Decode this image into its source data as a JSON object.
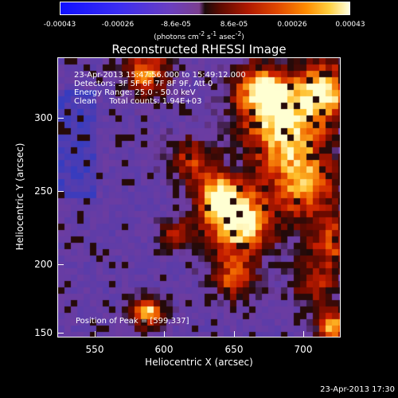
{
  "colorbar": {
    "ticks": [
      "-0.00043",
      "-0.00026",
      "-8.6e-05",
      "8.6e-05",
      "0.00026",
      "0.00043"
    ],
    "units_html": "(photons cm<sup>-2</sup> s<sup>-1</sup> asec<sup>-2</sup>)",
    "colors": [
      "#1010ff",
      "#6b3fbf",
      "#1b0a0a",
      "#b01a00",
      "#ff8c00",
      "#ffffe0"
    ]
  },
  "title": "Reconstructed RHESSI Image",
  "annotations": {
    "time_range": "23-Apr-2013 15:47:56.000 to 15:49:12.000",
    "detectors": "Detectors: 3F 5F 6F 7F 8F 9F, Att 0",
    "energy": "Energy Range: 25.0 - 50.0 keV",
    "clean": "Clean     Total counts: 1.94E+03",
    "peak": "Position of Peak = [599,337]"
  },
  "axes": {
    "xlabel": "Heliocentric X (arcsec)",
    "ylabel": "Heliocentric Y (arcsec)",
    "xticks": [
      "550",
      "600",
      "650",
      "700"
    ],
    "yticks": [
      "150",
      "200",
      "250",
      "300"
    ]
  },
  "timestamp": "23-Apr-2013 17:30"
}
